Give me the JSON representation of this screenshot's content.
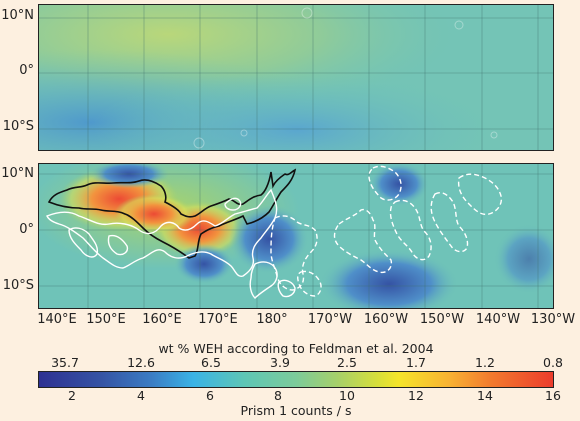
{
  "top_panel": {
    "lat_labels": [
      "10°N",
      "0°",
      "10°S"
    ]
  },
  "bottom_panel": {
    "lat_labels": [
      "10°N",
      "0°",
      "10°S"
    ],
    "lon_labels": [
      "140°E",
      "150°E",
      "160°E",
      "170°E",
      "180°",
      "170°W",
      "160°W",
      "150°W",
      "140°W",
      "130°W"
    ]
  },
  "colorbar": {
    "title": "wt % WEH according to Feldman et al. 2004",
    "top_ticks": [
      "35.7",
      "12.6",
      "6.5",
      "3.9",
      "2.5",
      "1.7",
      "1.2",
      "0.8"
    ],
    "bottom_ticks": [
      "2",
      "4",
      "6",
      "8",
      "10",
      "12",
      "14",
      "16"
    ],
    "xlabel": "Prism 1 counts / s",
    "range": [
      1,
      16
    ],
    "colors": [
      "#2e3192",
      "#3b7dc4",
      "#3ab3e6",
      "#7ccb9a",
      "#f5e52a",
      "#f27a2e",
      "#ec3c2c"
    ]
  }
}
